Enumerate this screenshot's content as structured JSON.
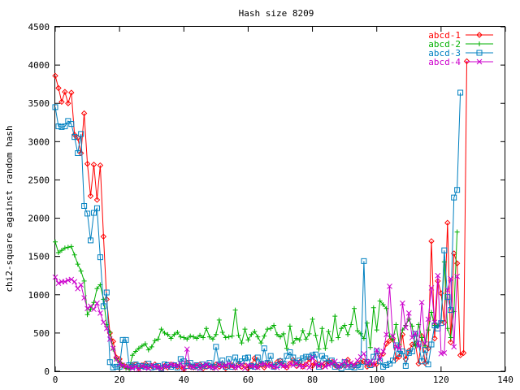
{
  "chart_data": {
    "type": "line",
    "title": "Hash size 8209",
    "xlabel": "",
    "ylabel": "chi2-square against random hash",
    "xlim": [
      0,
      140
    ],
    "ylim": [
      0,
      4500
    ],
    "xticks": [
      0,
      20,
      40,
      60,
      80,
      100,
      120,
      140
    ],
    "yticks": [
      0,
      500,
      1000,
      1500,
      2000,
      2500,
      3000,
      3500,
      4000,
      4500
    ],
    "legend_position": "top-right",
    "grid": false,
    "series": [
      {
        "name": "abcd-1",
        "color": "#ff0000",
        "marker": "diamond",
        "values": [
          3860,
          3700,
          3520,
          3650,
          3500,
          3640,
          3090,
          3050,
          2850,
          3370,
          2710,
          2290,
          2700,
          2240,
          2690,
          1760,
          940,
          500,
          390,
          180,
          160,
          80,
          60,
          50,
          80,
          90,
          40,
          80,
          100,
          60,
          70,
          90,
          60,
          40,
          70,
          50,
          90,
          80,
          60,
          70,
          30,
          110,
          60,
          50,
          70,
          90,
          40,
          60,
          80,
          50,
          90,
          60,
          100,
          40,
          70,
          80,
          50,
          90,
          60,
          70,
          40,
          80,
          170,
          60,
          90,
          50,
          110,
          90,
          60,
          120,
          140,
          80,
          50,
          100,
          150,
          70,
          120,
          60,
          90,
          160,
          70,
          110,
          90,
          60,
          100,
          130,
          120,
          80,
          60,
          70,
          80,
          150,
          90,
          70,
          110,
          120,
          130,
          60,
          80,
          90,
          100,
          210,
          230,
          360,
          400,
          430,
          160,
          190,
          480,
          160,
          270,
          350,
          360,
          100,
          460,
          110,
          300,
          1700,
          430,
          1180,
          1020,
          640,
          1940,
          380,
          1540,
          1410,
          210,
          240,
          4050
        ]
      },
      {
        "name": "abcd-2",
        "color": "#00b000",
        "marker": "plus",
        "values": [
          1690,
          1550,
          1580,
          1610,
          1620,
          1630,
          1520,
          1400,
          1310,
          1180,
          740,
          810,
          900,
          1080,
          1130,
          940,
          610,
          510,
          290,
          160,
          110,
          80,
          40,
          30,
          210,
          260,
          300,
          330,
          360,
          280,
          320,
          400,
          420,
          550,
          500,
          480,
          430,
          480,
          510,
          450,
          440,
          420,
          460,
          450,
          430,
          470,
          440,
          560,
          450,
          420,
          480,
          670,
          510,
          440,
          450,
          460,
          800,
          470,
          370,
          550,
          410,
          480,
          520,
          450,
          370,
          460,
          550,
          560,
          600,
          480,
          450,
          490,
          300,
          590,
          370,
          430,
          410,
          530,
          420,
          490,
          680,
          470,
          290,
          560,
          300,
          520,
          400,
          720,
          440,
          560,
          600,
          480,
          610,
          820,
          530,
          490,
          430,
          630,
          310,
          830,
          540,
          920,
          870,
          820,
          460,
          410,
          610,
          350,
          540,
          600,
          680,
          590,
          330,
          610,
          440,
          330,
          540,
          770,
          600,
          590,
          660,
          1430,
          560,
          440,
          780,
          1820
        ]
      },
      {
        "name": "abcd-3",
        "color": "#0080c0",
        "marker": "square",
        "values": [
          3450,
          3200,
          3190,
          3200,
          3270,
          3230,
          3060,
          2850,
          3100,
          2160,
          2060,
          1710,
          2070,
          2130,
          1490,
          850,
          1030,
          120,
          50,
          60,
          60,
          410,
          410,
          80,
          60,
          90,
          70,
          70,
          60,
          100,
          50,
          60,
          70,
          40,
          90,
          80,
          60,
          80,
          50,
          160,
          130,
          70,
          110,
          60,
          80,
          50,
          90,
          70,
          110,
          60,
          320,
          90,
          140,
          60,
          160,
          60,
          180,
          100,
          130,
          170,
          180,
          70,
          60,
          180,
          100,
          300,
          110,
          200,
          60,
          80,
          130,
          100,
          200,
          250,
          180,
          110,
          140,
          170,
          190,
          190,
          210,
          220,
          60,
          200,
          170,
          110,
          140,
          60,
          80,
          40,
          120,
          60,
          60,
          50,
          80,
          60,
          1440,
          120,
          80,
          190,
          260,
          130,
          60,
          80,
          100,
          140,
          340,
          230,
          260,
          70,
          240,
          260,
          490,
          360,
          130,
          280,
          90,
          350,
          600,
          560,
          630,
          1580,
          970,
          800,
          2270,
          2370,
          3640
        ]
      },
      {
        "name": "abcd-4",
        "color": "#cc00cc",
        "marker": "cross",
        "values": [
          1230,
          1150,
          1170,
          1170,
          1190,
          1200,
          1170,
          1080,
          1130,
          960,
          820,
          850,
          810,
          890,
          760,
          640,
          560,
          420,
          300,
          160,
          100,
          80,
          60,
          50,
          40,
          60,
          30,
          70,
          50,
          40,
          80,
          60,
          50,
          40,
          70,
          60,
          90,
          80,
          70,
          100,
          40,
          290,
          60,
          50,
          80,
          40,
          70,
          90,
          60,
          50,
          40,
          90,
          60,
          80,
          100,
          70,
          50,
          60,
          90,
          40,
          80,
          70,
          60,
          50,
          90,
          100,
          70,
          80,
          60,
          50,
          90,
          70,
          60,
          100,
          80,
          110,
          70,
          60,
          90,
          50,
          180,
          90,
          70,
          100,
          60,
          80,
          100,
          130,
          60,
          90,
          130,
          70,
          110,
          80,
          140,
          190,
          230,
          110,
          130,
          90,
          280,
          160,
          260,
          480,
          1110,
          460,
          320,
          300,
          890,
          570,
          760,
          440,
          500,
          330,
          900,
          360,
          680,
          1090,
          640,
          1250,
          230,
          240,
          1060,
          1210,
          320,
          1240
        ]
      }
    ]
  }
}
